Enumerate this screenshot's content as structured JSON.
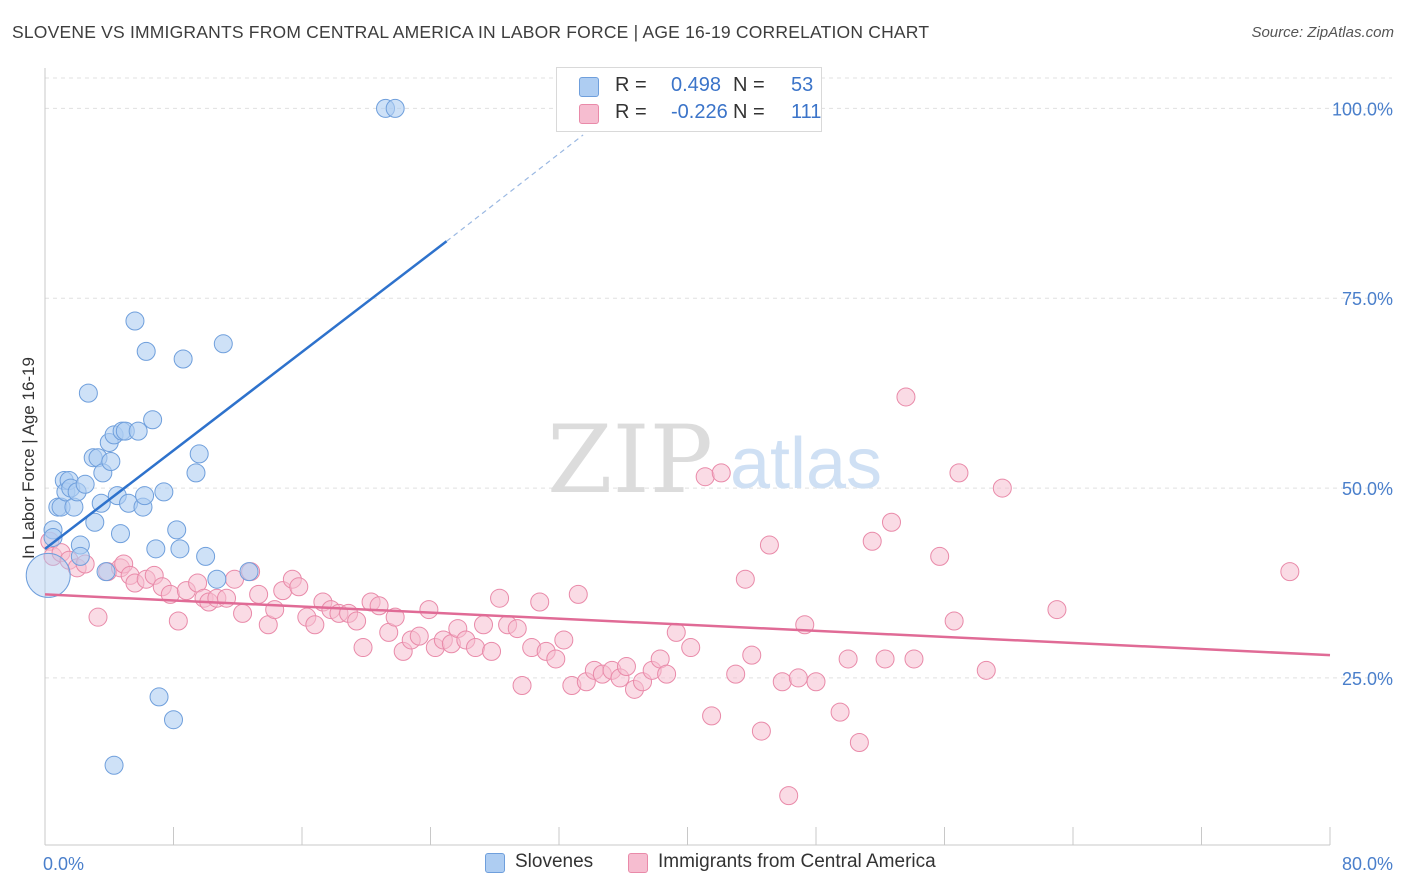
{
  "header": {
    "title": "SLOVENE VS IMMIGRANTS FROM CENTRAL AMERICA IN LABOR FORCE | AGE 16-19 CORRELATION CHART",
    "source": "Source: ZipAtlas.com"
  },
  "watermark": {
    "zip": "ZIP",
    "atlas": "atlas"
  },
  "legend": {
    "rows": [
      {
        "r_key": "R =",
        "r_value": "0.498",
        "n_key": "N =",
        "n_value": "53"
      },
      {
        "r_key": "R =",
        "r_value": "-0.226",
        "n_key": "N =",
        "n_value": "111"
      }
    ]
  },
  "bottom_legend": {
    "series1": "Slovenes",
    "series2": "Immigrants from Central America"
  },
  "colors": {
    "blue_fill": "#aecdf2",
    "blue_stroke": "#6f9fdc",
    "blue_line": "#2e72cc",
    "pink_fill": "#f6bdd0",
    "pink_stroke": "#e98aa9",
    "pink_line": "#e06b96",
    "tick_label": "#4a7fcb",
    "grid": "#e0e0e0"
  },
  "chart_data": {
    "type": "scatter",
    "title": "SLOVENE VS IMMIGRANTS FROM CENTRAL AMERICA IN LABOR FORCE | AGE 16-19 CORRELATION CHART",
    "xlabel": "",
    "ylabel": "In Labor Force | Age 16-19",
    "xlim": [
      0,
      80
    ],
    "ylim": [
      3,
      104
    ],
    "x_tick_labels": [
      "0.0%",
      "80.0%"
    ],
    "y_ticks": [
      25,
      50,
      75,
      100
    ],
    "y_tick_labels": [
      "25.0%",
      "50.0%",
      "75.0%",
      "100.0%"
    ],
    "grid": true,
    "series": [
      {
        "name": "Slovenes",
        "R": 0.498,
        "N": 53,
        "trend": {
          "x0": 0,
          "y0": 42,
          "x1": 25,
          "y1": 82.5,
          "dash_to_x": 33.5,
          "dash_to_y": 96.5
        },
        "points": [
          [
            0.2,
            38.5
          ],
          [
            0.5,
            44.5
          ],
          [
            0.5,
            43.5
          ],
          [
            0.8,
            47.5
          ],
          [
            1.0,
            47.5
          ],
          [
            1.2,
            51
          ],
          [
            1.3,
            49.5
          ],
          [
            1.5,
            51
          ],
          [
            1.6,
            50
          ],
          [
            1.8,
            47.5
          ],
          [
            2.0,
            49.5
          ],
          [
            2.2,
            42.5
          ],
          [
            2.2,
            41
          ],
          [
            2.5,
            50.5
          ],
          [
            2.7,
            62.5
          ],
          [
            3.0,
            54
          ],
          [
            3.1,
            45.5
          ],
          [
            3.3,
            54
          ],
          [
            3.5,
            48
          ],
          [
            3.6,
            52
          ],
          [
            3.8,
            39
          ],
          [
            4.0,
            56
          ],
          [
            4.1,
            53.5
          ],
          [
            4.3,
            57
          ],
          [
            4.5,
            49
          ],
          [
            4.7,
            44
          ],
          [
            4.8,
            57.5
          ],
          [
            5.0,
            57.5
          ],
          [
            5.2,
            48
          ],
          [
            5.6,
            72
          ],
          [
            5.8,
            57.5
          ],
          [
            6.1,
            47.5
          ],
          [
            6.2,
            49
          ],
          [
            6.3,
            68
          ],
          [
            6.7,
            59
          ],
          [
            6.9,
            42
          ],
          [
            7.1,
            22.5
          ],
          [
            7.4,
            49.5
          ],
          [
            8.0,
            19.5
          ],
          [
            8.2,
            44.5
          ],
          [
            8.4,
            42
          ],
          [
            8.6,
            67
          ],
          [
            9.4,
            52
          ],
          [
            9.6,
            54.5
          ],
          [
            10.0,
            41
          ],
          [
            10.7,
            38
          ],
          [
            11.1,
            69
          ],
          [
            12.7,
            39
          ],
          [
            4.3,
            13.5
          ],
          [
            21.2,
            100
          ],
          [
            21.8,
            100
          ]
        ]
      },
      {
        "name": "Immigrants from Central America",
        "R": -0.226,
        "N": 111,
        "trend": {
          "x0": 0,
          "y0": 36,
          "x1": 80,
          "y1": 28
        },
        "points": [
          [
            0.3,
            43
          ],
          [
            0.5,
            41
          ],
          [
            1.0,
            41.5
          ],
          [
            1.5,
            40.5
          ],
          [
            2.0,
            39.5
          ],
          [
            2.5,
            40
          ],
          [
            3.3,
            33
          ],
          [
            3.9,
            39
          ],
          [
            4.7,
            39.5
          ],
          [
            4.9,
            40
          ],
          [
            5.3,
            38.5
          ],
          [
            5.6,
            37.5
          ],
          [
            6.3,
            38
          ],
          [
            6.8,
            38.5
          ],
          [
            7.3,
            37
          ],
          [
            7.8,
            36
          ],
          [
            8.3,
            32.5
          ],
          [
            8.8,
            36.5
          ],
          [
            9.5,
            37.5
          ],
          [
            9.9,
            35.5
          ],
          [
            10.2,
            35
          ],
          [
            10.7,
            35.5
          ],
          [
            11.3,
            35.5
          ],
          [
            11.8,
            38
          ],
          [
            12.3,
            33.5
          ],
          [
            12.8,
            39
          ],
          [
            13.3,
            36
          ],
          [
            13.9,
            32
          ],
          [
            14.3,
            34
          ],
          [
            14.8,
            36.5
          ],
          [
            15.4,
            38
          ],
          [
            15.8,
            37
          ],
          [
            16.3,
            33
          ],
          [
            16.8,
            32
          ],
          [
            17.3,
            35
          ],
          [
            17.8,
            34
          ],
          [
            18.3,
            33.5
          ],
          [
            18.9,
            33.5
          ],
          [
            19.4,
            32.5
          ],
          [
            19.8,
            29
          ],
          [
            20.3,
            35
          ],
          [
            20.8,
            34.5
          ],
          [
            21.4,
            31
          ],
          [
            21.8,
            33
          ],
          [
            22.3,
            28.5
          ],
          [
            22.8,
            30
          ],
          [
            23.3,
            30.5
          ],
          [
            23.9,
            34
          ],
          [
            24.3,
            29
          ],
          [
            24.8,
            30
          ],
          [
            25.3,
            29.5
          ],
          [
            25.7,
            31.5
          ],
          [
            26.2,
            30
          ],
          [
            26.8,
            29
          ],
          [
            27.3,
            32
          ],
          [
            27.8,
            28.5
          ],
          [
            28.3,
            35.5
          ],
          [
            28.8,
            32
          ],
          [
            29.4,
            31.5
          ],
          [
            29.7,
            24
          ],
          [
            30.3,
            29
          ],
          [
            30.8,
            35
          ],
          [
            31.2,
            28.5
          ],
          [
            31.8,
            27.5
          ],
          [
            32.3,
            30
          ],
          [
            32.8,
            24
          ],
          [
            33.2,
            36
          ],
          [
            33.7,
            24.5
          ],
          [
            34.2,
            26
          ],
          [
            34.7,
            25.5
          ],
          [
            35.3,
            26
          ],
          [
            35.8,
            25
          ],
          [
            36.2,
            26.5
          ],
          [
            36.7,
            23.5
          ],
          [
            37.2,
            24.5
          ],
          [
            37.8,
            26
          ],
          [
            38.3,
            27.5
          ],
          [
            38.7,
            25.5
          ],
          [
            39.3,
            31
          ],
          [
            40.2,
            29
          ],
          [
            41.1,
            51.5
          ],
          [
            41.5,
            20
          ],
          [
            42.1,
            52
          ],
          [
            43.0,
            25.5
          ],
          [
            43.6,
            38
          ],
          [
            44.0,
            28
          ],
          [
            44.6,
            18
          ],
          [
            45.1,
            42.5
          ],
          [
            45.9,
            24.5
          ],
          [
            46.3,
            9.5
          ],
          [
            46.9,
            25
          ],
          [
            47.3,
            32
          ],
          [
            48.0,
            24.5
          ],
          [
            49.5,
            20.5
          ],
          [
            50.0,
            27.5
          ],
          [
            50.7,
            16.5
          ],
          [
            51.5,
            43
          ],
          [
            52.3,
            27.5
          ],
          [
            52.7,
            45.5
          ],
          [
            53.6,
            62
          ],
          [
            54.1,
            27.5
          ],
          [
            55.7,
            41
          ],
          [
            56.6,
            32.5
          ],
          [
            56.9,
            52
          ],
          [
            58.6,
            26
          ],
          [
            59.6,
            50
          ],
          [
            63.0,
            34
          ],
          [
            77.5,
            39
          ]
        ]
      }
    ]
  }
}
